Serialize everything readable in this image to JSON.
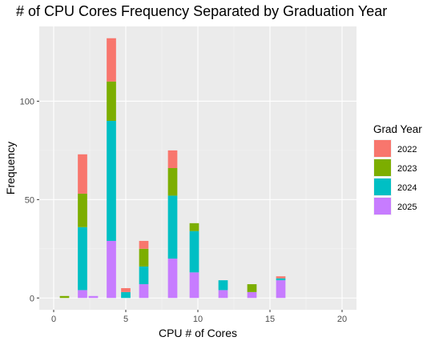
{
  "chart_data": {
    "type": "bar",
    "stacked": true,
    "title": "# of CPU Cores Frequency Separated by Graduation Year",
    "xlabel": "CPU # of Cores",
    "ylabel": "Frequency",
    "xlim": [
      -1,
      21
    ],
    "ylim": [
      -6,
      138
    ],
    "x_ticks": [
      0,
      5,
      10,
      15,
      20
    ],
    "y_ticks": [
      0,
      50,
      100
    ],
    "bin_width": 0.65,
    "grid": true,
    "legend_position": "right",
    "legend_title": "Grad Year",
    "x": [
      0.75,
      2,
      2.75,
      4,
      5,
      6.25,
      8.25,
      9.75,
      11.75,
      13.75,
      15.75
    ],
    "series": [
      {
        "name": "2025",
        "color": "#C77CFF",
        "values": [
          0,
          4,
          1,
          29,
          0,
          7,
          20,
          13,
          4,
          3,
          9
        ]
      },
      {
        "name": "2024",
        "color": "#00BFC4",
        "values": [
          0,
          32,
          0,
          61,
          3,
          9,
          32,
          21,
          5,
          0,
          1
        ]
      },
      {
        "name": "2023",
        "color": "#7CAE00",
        "values": [
          1,
          17,
          0,
          20,
          0,
          9,
          14,
          4,
          0,
          4,
          0
        ]
      },
      {
        "name": "2022",
        "color": "#F8766D",
        "values": [
          0,
          20,
          0,
          22,
          2,
          4,
          9,
          0,
          0,
          0,
          1
        ]
      }
    ],
    "legend_order": [
      "2022",
      "2023",
      "2024",
      "2025"
    ]
  }
}
